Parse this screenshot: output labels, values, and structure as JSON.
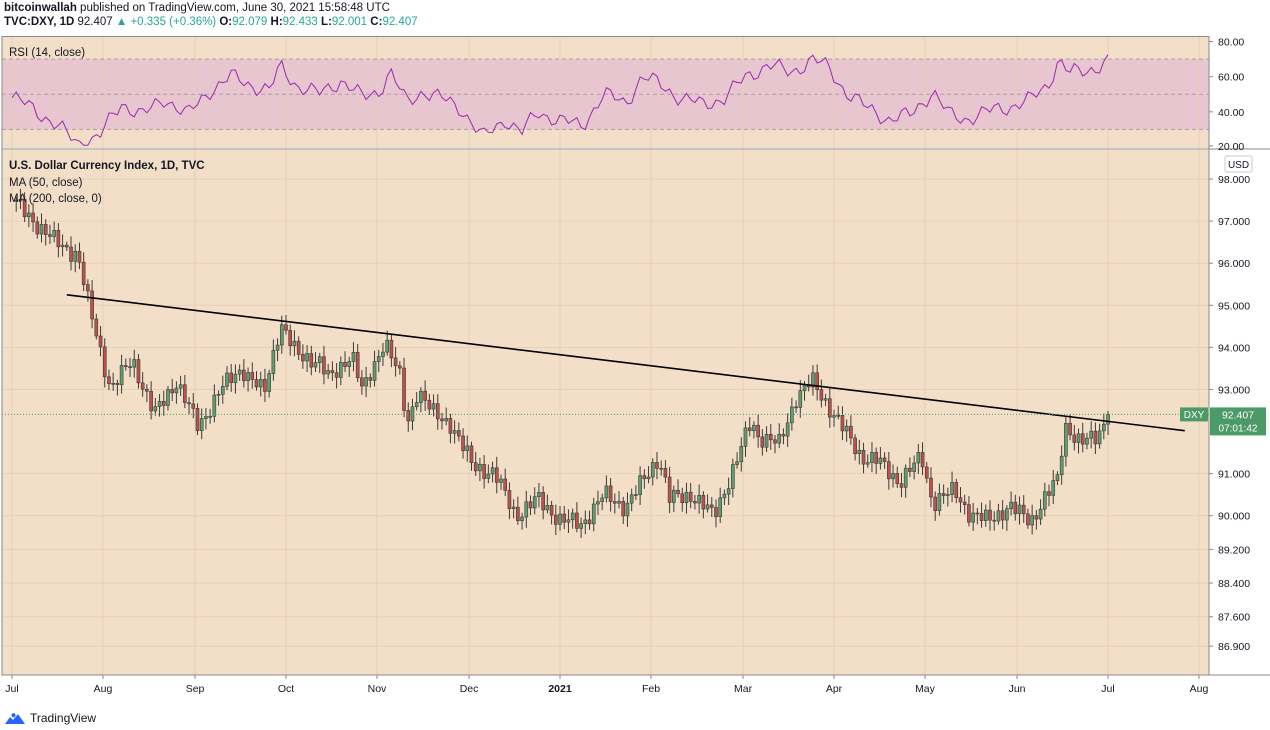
{
  "header": {
    "author": "bitcoinwallah",
    "published_text": "published on TradingView.com, June 30, 2021 15:58:48 UTC",
    "symbol": "TVC:DXY, 1D",
    "last": "92.407",
    "change": "▲ +0.335 (+0.36%)",
    "open_label": "O:",
    "open": "92.079",
    "high_label": "H:",
    "high": "92.433",
    "low_label": "L:",
    "low": "92.001",
    "close_label": "C:",
    "close": "92.407"
  },
  "footer": {
    "brand": "TradingView"
  },
  "colors": {
    "background": "#f3dfc8",
    "rsi_band": "#e8c6cf",
    "rsi_line": "#9c27b0",
    "up": "#5f9e6e",
    "down": "#c0504a",
    "trendline": "#000000",
    "badge": "#4c9a68"
  },
  "chart_data": {
    "type": "candlestick",
    "price_pane": {
      "title": "U.S. Dollar Currency Index, 1D, TVC",
      "indicators": [
        "MA (50, close)",
        "MA (200, close, 0)"
      ],
      "currency": "USD",
      "y_ticks": [
        "98.000",
        "97.000",
        "96.000",
        "95.000",
        "94.000",
        "93.000",
        "91.000",
        "90.000",
        "89.200",
        "88.400",
        "87.600",
        "86.900"
      ],
      "y_tick_values": [
        98.0,
        97.0,
        96.0,
        95.0,
        94.0,
        93.0,
        91.0,
        90.0,
        89.2,
        88.4,
        87.6,
        86.9
      ],
      "ylim": [
        86.5,
        98.5
      ],
      "last_price_label": "92.407",
      "last_price_symbol": "DXY",
      "countdown": "07:01:42",
      "last_price": 92.407,
      "trendline": [
        [
          2020.55,
          95.25
        ],
        [
          2021.57,
          92.02
        ]
      ]
    },
    "rsi_pane": {
      "title": "RSI (14, close)",
      "y_ticks": [
        "80.00",
        "60.00",
        "40.00",
        "20.00"
      ],
      "y_tick_values": [
        80,
        60,
        40,
        20
      ],
      "ylim": [
        20,
        82
      ],
      "band": [
        30,
        70
      ],
      "midline": 50
    },
    "x_labels": [
      "Jul",
      "Aug",
      "Sep",
      "Oct",
      "Nov",
      "Dec",
      "2021",
      "Feb",
      "Mar",
      "Apr",
      "May",
      "Jun",
      "Jul",
      "Aug"
    ],
    "x_label_dates": [
      2020.5,
      2020.583,
      2020.667,
      2020.75,
      2020.833,
      2020.917,
      2021.0,
      2021.083,
      2021.167,
      2021.25,
      2021.333,
      2021.417,
      2021.5,
      2021.583
    ],
    "price_path": [
      [
        2020.5,
        97.5
      ],
      [
        2020.54,
        96.5
      ],
      [
        2020.56,
        96.2
      ],
      [
        2020.57,
        95.0
      ],
      [
        2020.59,
        93.0
      ],
      [
        2020.61,
        93.7
      ],
      [
        2020.63,
        92.4
      ],
      [
        2020.65,
        93.2
      ],
      [
        2020.67,
        92.1
      ],
      [
        2020.69,
        93.0
      ],
      [
        2020.71,
        93.5
      ],
      [
        2020.73,
        92.9
      ],
      [
        2020.745,
        94.6
      ],
      [
        2020.76,
        93.8
      ],
      [
        2020.78,
        93.7
      ],
      [
        2020.79,
        93.2
      ],
      [
        2020.81,
        93.9
      ],
      [
        2020.82,
        92.9
      ],
      [
        2020.84,
        94.2
      ],
      [
        2020.855,
        93.2
      ],
      [
        2020.86,
        92.1
      ],
      [
        2020.87,
        93.0
      ],
      [
        2020.885,
        92.4
      ],
      [
        2020.9,
        92.2
      ],
      [
        2020.92,
        91.2
      ],
      [
        2020.94,
        91.0
      ],
      [
        2020.96,
        90.0
      ],
      [
        2020.98,
        90.4
      ],
      [
        2021.0,
        89.9
      ],
      [
        2021.02,
        89.8
      ],
      [
        2021.04,
        90.5
      ],
      [
        2021.06,
        90.2
      ],
      [
        2021.08,
        91.0
      ],
      [
        2021.09,
        91.4
      ],
      [
        2021.1,
        90.4
      ],
      [
        2021.12,
        90.5
      ],
      [
        2021.14,
        90.0
      ],
      [
        2021.16,
        91.2
      ],
      [
        2021.175,
        92.3
      ],
      [
        2021.18,
        91.9
      ],
      [
        2021.2,
        91.7
      ],
      [
        2021.215,
        92.8
      ],
      [
        2021.23,
        93.2
      ],
      [
        2021.24,
        92.8
      ],
      [
        2021.25,
        92.4
      ],
      [
        2021.26,
        92.0
      ],
      [
        2021.275,
        91.4
      ],
      [
        2021.29,
        91.3
      ],
      [
        2021.31,
        90.8
      ],
      [
        2021.33,
        91.4
      ],
      [
        2021.34,
        90.3
      ],
      [
        2021.36,
        90.6
      ],
      [
        2021.375,
        90.0
      ],
      [
        2021.39,
        89.9
      ],
      [
        2021.41,
        90.2
      ],
      [
        2021.43,
        89.9
      ],
      [
        2021.44,
        90.3
      ],
      [
        2021.455,
        90.9
      ],
      [
        2021.46,
        92.2
      ],
      [
        2021.475,
        91.7
      ],
      [
        2021.49,
        91.9
      ],
      [
        2021.5,
        92.4
      ]
    ],
    "rsi_path": [
      [
        2020.5,
        48
      ],
      [
        2020.52,
        42
      ],
      [
        2020.545,
        30
      ],
      [
        2020.56,
        22
      ],
      [
        2020.58,
        26
      ],
      [
        2020.6,
        45
      ],
      [
        2020.62,
        38
      ],
      [
        2020.64,
        48
      ],
      [
        2020.66,
        38
      ],
      [
        2020.68,
        52
      ],
      [
        2020.7,
        60
      ],
      [
        2020.72,
        55
      ],
      [
        2020.735,
        52
      ],
      [
        2020.745,
        66
      ],
      [
        2020.76,
        55
      ],
      [
        2020.78,
        50
      ],
      [
        2020.8,
        58
      ],
      [
        2020.82,
        48
      ],
      [
        2020.835,
        52
      ],
      [
        2020.845,
        63
      ],
      [
        2020.86,
        45
      ],
      [
        2020.875,
        52
      ],
      [
        2020.89,
        48
      ],
      [
        2020.91,
        42
      ],
      [
        2020.93,
        25
      ],
      [
        2020.95,
        36
      ],
      [
        2020.965,
        28
      ],
      [
        2020.98,
        40
      ],
      [
        2021.0,
        35
      ],
      [
        2021.02,
        32
      ],
      [
        2021.04,
        50
      ],
      [
        2021.06,
        45
      ],
      [
        2021.075,
        60
      ],
      [
        2021.09,
        56
      ],
      [
        2021.11,
        48
      ],
      [
        2021.13,
        44
      ],
      [
        2021.15,
        48
      ],
      [
        2021.17,
        60
      ],
      [
        2021.19,
        67
      ],
      [
        2021.21,
        62
      ],
      [
        2021.23,
        70
      ],
      [
        2021.245,
        65
      ],
      [
        2021.26,
        52
      ],
      [
        2021.28,
        42
      ],
      [
        2021.3,
        36
      ],
      [
        2021.32,
        38
      ],
      [
        2021.34,
        52
      ],
      [
        2021.355,
        38
      ],
      [
        2021.37,
        36
      ],
      [
        2021.39,
        40
      ],
      [
        2021.41,
        43
      ],
      [
        2021.43,
        47
      ],
      [
        2021.445,
        55
      ],
      [
        2021.455,
        70
      ],
      [
        2021.465,
        62
      ],
      [
        2021.48,
        63
      ],
      [
        2021.5,
        69
      ]
    ]
  }
}
